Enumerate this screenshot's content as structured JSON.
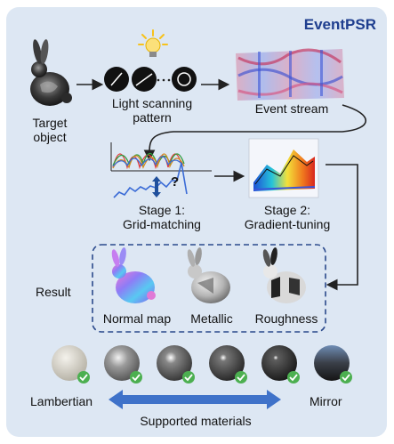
{
  "title": "EventPSR",
  "pipeline": {
    "target_object": [
      "Target",
      "object"
    ],
    "light_scanning": [
      "Light scanning",
      "pattern"
    ],
    "event_stream": "Event stream",
    "stage1": [
      "Stage 1:",
      "Grid-matching"
    ],
    "stage2": [
      "Stage 2:",
      "Gradient-tuning"
    ],
    "match_symbol": "?"
  },
  "result": {
    "label": "Result",
    "outputs": [
      "Normal map",
      "Metallic",
      "Roughness"
    ]
  },
  "materials": {
    "left_label": "Lambertian",
    "right_label": "Mirror",
    "range_label": "Supported materials",
    "sphere_count": 6
  },
  "colors": {
    "panel_bg": "#dde7f3",
    "title": "#1f3f8f",
    "dashed_box": "#2b4a8c",
    "range_arrow": "#3f72c9",
    "check": "#4caf50",
    "light": "#f7c21b"
  }
}
